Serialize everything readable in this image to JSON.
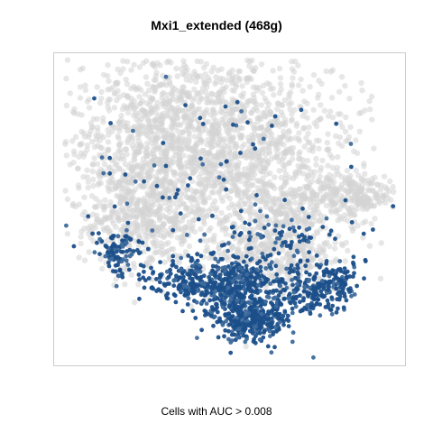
{
  "chart_data": {
    "type": "scatter",
    "title": "Mxi1_extended (468g)",
    "caption": "Cells with AUC > 0.008",
    "axes_visible": false,
    "grid": false,
    "x_range": [
      0,
      100
    ],
    "y_range": [
      0,
      100
    ],
    "colors": {
      "background_cells": "#d3d3d3",
      "highlight_cells": "#1b4f8a",
      "highlight_alt": "#3d6a9c",
      "box_border": "#cccccc"
    },
    "series": [
      {
        "role": "all cells",
        "color": "#d3d3d3",
        "regions": [
          {
            "cx": 28,
            "cy": 70,
            "sx": 13,
            "sy": 17,
            "n": 1100
          },
          {
            "cx": 55,
            "cy": 72,
            "sx": 15,
            "sy": 16,
            "n": 1000
          },
          {
            "cx": 68,
            "cy": 45,
            "sx": 10,
            "sy": 10,
            "n": 350
          },
          {
            "cx": 88,
            "cy": 55,
            "sx": 6,
            "sy": 3.5,
            "n": 220
          },
          {
            "cx": 60,
            "cy": 33,
            "sx": 9,
            "sy": 6,
            "n": 250
          },
          {
            "cx": 22,
            "cy": 45,
            "sx": 8,
            "sy": 8,
            "n": 300
          }
        ]
      },
      {
        "role": "cells with AUC above threshold",
        "color": "#1b4f8a",
        "regions": [
          {
            "cx": 52,
            "cy": 24,
            "sx": 7,
            "sy": 6,
            "n": 420
          },
          {
            "cx": 57,
            "cy": 13,
            "sx": 5,
            "sy": 3.5,
            "n": 300
          },
          {
            "cx": 73,
            "cy": 22,
            "sx": 5,
            "sy": 4,
            "n": 140
          },
          {
            "cx": 82,
            "cy": 26,
            "sx": 4,
            "sy": 3.5,
            "n": 110
          },
          {
            "cx": 37,
            "cy": 26,
            "sx": 6,
            "sy": 3,
            "n": 160
          },
          {
            "cx": 16,
            "cy": 36,
            "sx": 3,
            "sy": 4,
            "n": 90
          },
          {
            "cx": 40,
            "cy": 55,
            "sx": 24,
            "sy": 22,
            "n": 110
          },
          {
            "cx": 68,
            "cy": 40,
            "sx": 10,
            "sy": 6,
            "n": 70
          }
        ]
      }
    ]
  }
}
